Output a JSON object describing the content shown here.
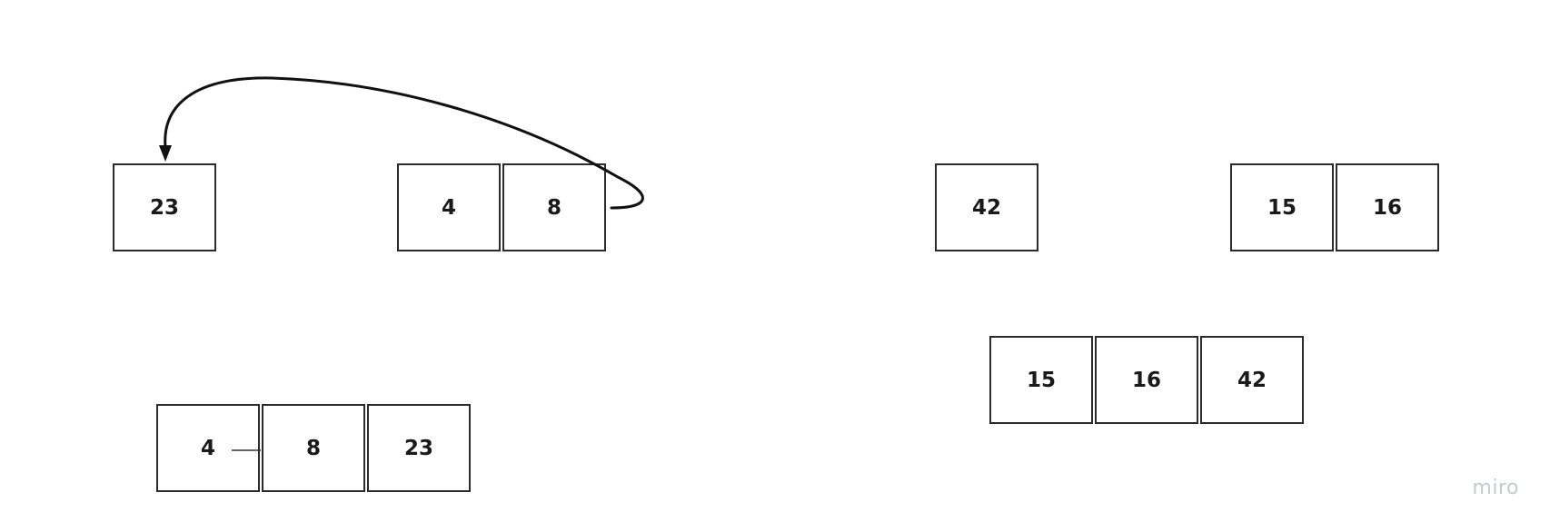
{
  "diagram": {
    "title": "",
    "groups": [
      {
        "id": "left-single",
        "cells": [
          "23"
        ]
      },
      {
        "id": "left-pair",
        "cells": [
          "4",
          "8"
        ]
      },
      {
        "id": "left-merged",
        "cells": [
          "4",
          "8",
          "23"
        ]
      },
      {
        "id": "right-single",
        "cells": [
          "42"
        ]
      },
      {
        "id": "right-pair",
        "cells": [
          "15",
          "16"
        ]
      },
      {
        "id": "right-merged",
        "cells": [
          "15",
          "16",
          "42"
        ]
      }
    ],
    "arrow": {
      "from": "cell with value 8",
      "to": "cell with value 23",
      "style": "curved"
    }
  },
  "watermark": "miro",
  "colors": {
    "stroke": "#2b2b2b",
    "text": "#1a1a1a",
    "watermark": "#c5c9d4",
    "background": "#ffffff"
  }
}
